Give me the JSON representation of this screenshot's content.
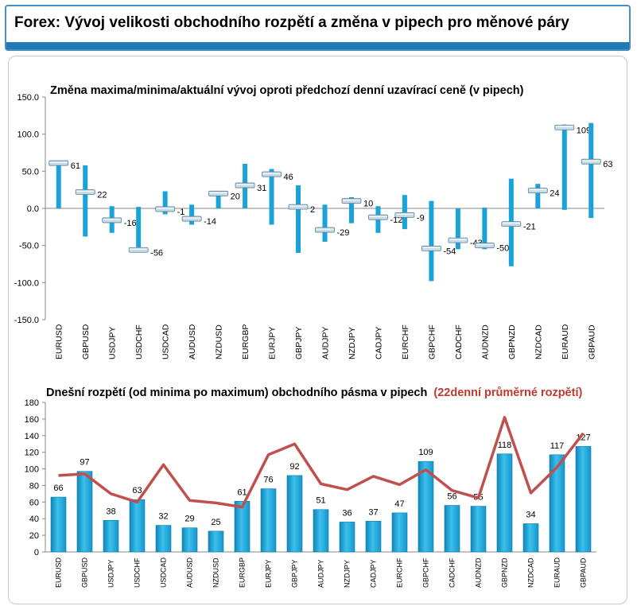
{
  "header": {
    "title": "Forex: Vývoj velikosti obchodního rozpětí a změna v pipech pro měnové páry"
  },
  "colors": {
    "bar": "#19a3d8",
    "line": "#c0504d",
    "header_bar": "#1f7ab5",
    "subtitle_red": "#c0392b"
  },
  "chart_data": [
    {
      "type": "range",
      "title": "Změna maxima/minima/aktuální vývoj oproti předchozí denní uzavírací ceně (v pipech)",
      "xlabel": "",
      "ylabel": "",
      "ylim": [
        -150,
        150
      ],
      "yticks": [
        "150.0",
        "100.0",
        "50.0",
        "0.0",
        "-50.0",
        "-100.0",
        "-150.0"
      ],
      "categories": [
        "EURUSD",
        "GBPUSD",
        "USDJPY",
        "USDCHF",
        "USDCAD",
        "AUDUSD",
        "NZDUSD",
        "EURGBP",
        "EURJPY",
        "GBPJPY",
        "AUDJPY",
        "NZDJPY",
        "CADJPY",
        "EURCHF",
        "GBPCHF",
        "CADCHF",
        "AUDNZD",
        "GBPNZD",
        "NZDCAD",
        "EURAUD",
        "GBPAUD"
      ],
      "high": [
        62,
        58,
        3,
        2,
        23,
        5,
        22,
        60,
        53,
        31,
        5,
        15,
        3,
        18,
        10,
        0,
        1,
        40,
        33,
        113,
        115
      ],
      "low": [
        0,
        -38,
        -33,
        -58,
        -8,
        -22,
        0,
        0,
        -22,
        -60,
        -45,
        -20,
        -33,
        -28,
        -98,
        -55,
        -55,
        -78,
        0,
        -2,
        -13
      ],
      "current": [
        61,
        22,
        -16,
        -56,
        -1,
        -14,
        20,
        31,
        46,
        2,
        -29,
        10,
        -12,
        -9,
        -54,
        -43,
        -50,
        -21,
        24,
        109,
        63
      ]
    },
    {
      "type": "bar+line",
      "title": "Dnešní rozpětí (od minima po maximum) obchodního pásma v pipech",
      "title_highlight": "(22denní průměrné rozpětí)",
      "xlabel": "",
      "ylabel": "",
      "ylim": [
        0,
        180
      ],
      "yticks": [
        "0",
        "20",
        "40",
        "60",
        "80",
        "100",
        "120",
        "140",
        "160",
        "180"
      ],
      "categories": [
        "EURUSD",
        "GBPUSD",
        "USDJPY",
        "USDCHF",
        "USDCAD",
        "AUDUSD",
        "NZDUSD",
        "EURGBP",
        "EURJPY",
        "GBPJPY",
        "AUDJPY",
        "NZDJPY",
        "CADJPY",
        "EURCHF",
        "GBPCHF",
        "CADCHF",
        "AUDNZD",
        "GBPNZD",
        "NZDCAD",
        "EURAUD",
        "GBPAUD"
      ],
      "values": [
        66,
        97,
        38,
        63,
        32,
        29,
        25,
        61,
        76,
        92,
        51,
        36,
        37,
        47,
        109,
        56,
        55,
        118,
        34,
        117,
        127
      ],
      "average_22d": [
        92,
        94,
        70,
        60,
        105,
        62,
        59,
        54,
        117,
        130,
        82,
        75,
        91,
        81,
        99,
        74,
        65,
        162,
        71,
        102,
        143
      ]
    }
  ]
}
